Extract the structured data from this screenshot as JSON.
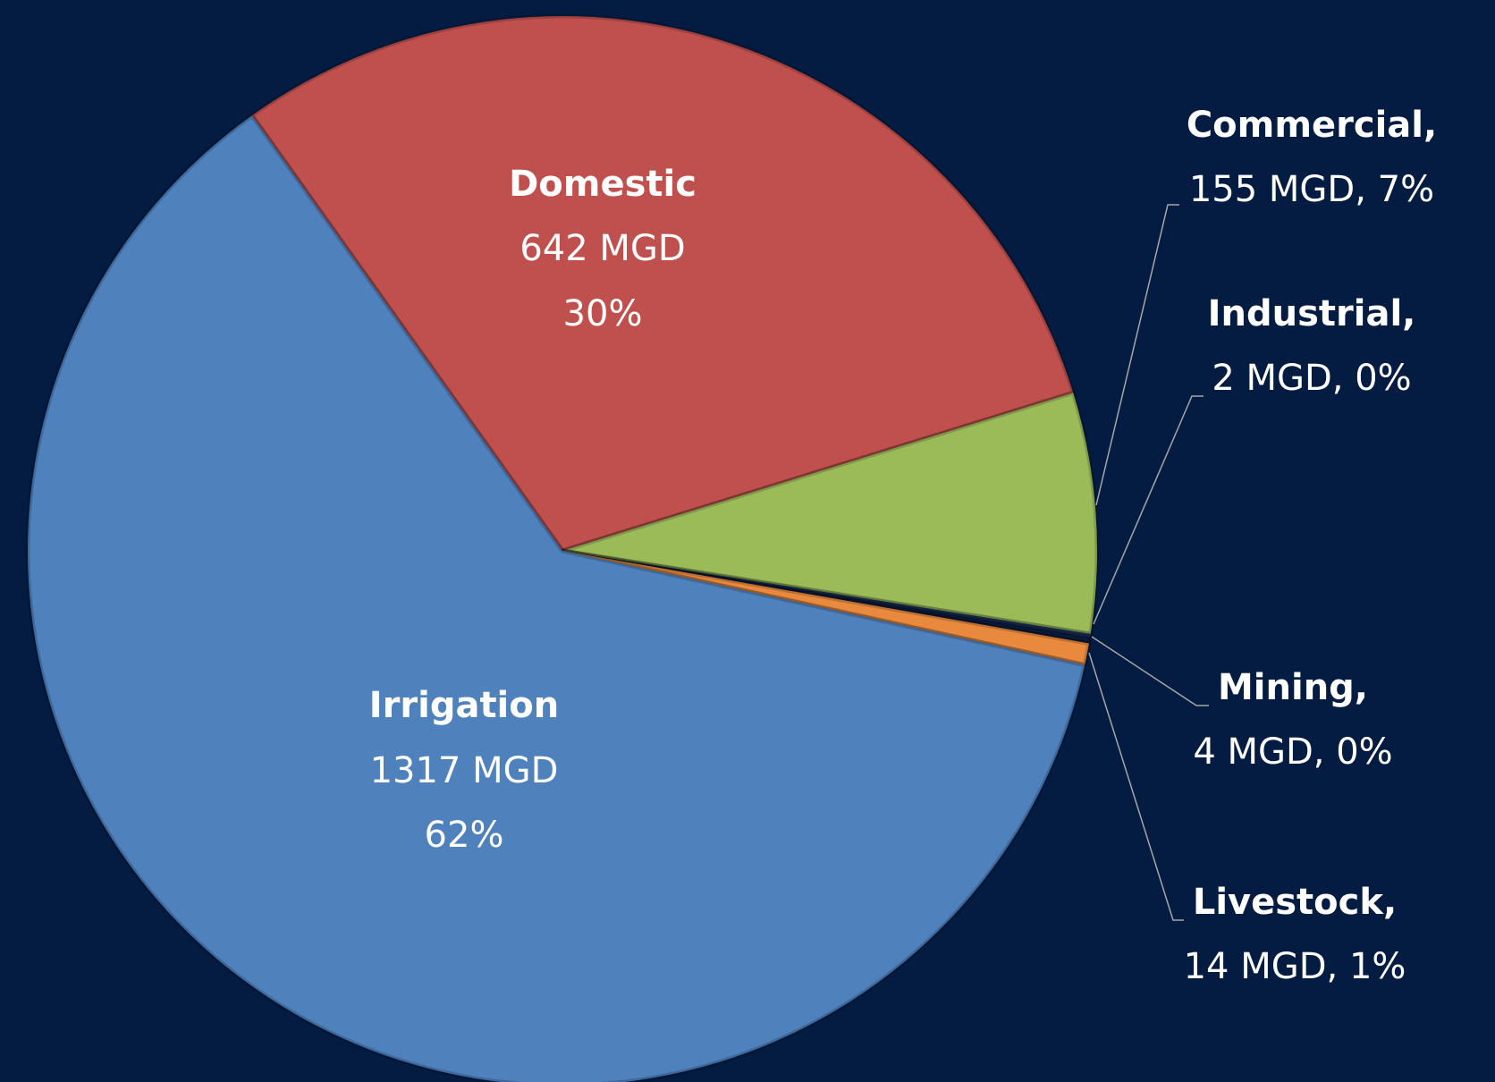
{
  "chart_data": {
    "type": "pie",
    "categories": [
      "Domestic",
      "Commercial,",
      "Industrial,",
      "Mining,",
      "Livestock,",
      "Irrigation"
    ],
    "values": [
      642,
      155,
      2,
      4,
      14,
      1317
    ],
    "value_labels": [
      "642 MGD",
      "155 MGD, 7%",
      "2 MGD, 0%",
      "4 MGD, 0%",
      "14 MGD, 1%",
      "1317 MGD"
    ],
    "percent_labels": [
      "30%",
      null,
      null,
      null,
      null,
      "62%"
    ],
    "colors": [
      "#c0504d",
      "#9bbb59",
      "#1c3461",
      "#0b1b3d",
      "#e8893e",
      "#4f81bd"
    ]
  }
}
